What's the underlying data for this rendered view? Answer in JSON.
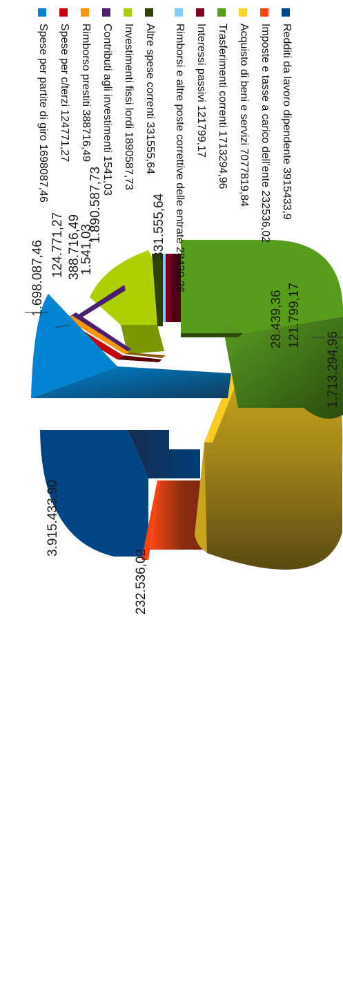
{
  "chart_data": {
    "type": "pie",
    "categories": [
      "Redditi da lavoro dipendente",
      "Imposte e tasse a carico dell'ente",
      "Acquisto di beni e servizi",
      "Trasferimenti correnti",
      "Interessi passivi",
      "Rimborsi e altre poste correttive delle entrate",
      "Altre spese correnti",
      "Investimenti fissi lordi",
      "Contributi agli investimenti",
      "Rimborso prestiti",
      "Spese per c/terzi",
      "Spese per partite di giro"
    ],
    "values": [
      3915433.9,
      232536.02,
      7077819.84,
      1713294.96,
      121799.17,
      28439.36,
      331555.64,
      1890587.73,
      1541.03,
      388716.49,
      124771.27,
      1698087.46
    ],
    "legend_labels": [
      "Redditi da lavoro dipendente 3915433,9",
      "Imposte e tasse a carico dell'ente 232536,02",
      "Acquisto di beni e servizi 7077819,84",
      "Trasferimenti correnti 1713294,96",
      "Interessi passivi 121799,17",
      "Rimborsi e altre poste correttive delle entrate 28439,36",
      "Altre spese correnti 331555,64",
      "Investimenti fissi lordi 1890587,73",
      "Contributi agli investimenti 1541,03",
      "Rimborso prestiti 388716,49",
      "Spese per c/terzi 124771,27",
      "Spese per partite di giro 1698087,46"
    ],
    "data_labels": [
      "3.915.433,90",
      "232.536,02",
      "",
      "1.713.294,96",
      "121.799,17",
      "28.439,36",
      "331.555,64",
      "1.890.587,73",
      "1.541,03",
      "388.716,49",
      "124.771,27",
      "1.698.087,46"
    ],
    "colors": [
      "#004586",
      "#ff420e",
      "#ffd320",
      "#579d1c",
      "#7e0021",
      "#83caff",
      "#314004",
      "#aecf00",
      "#4b1f6f",
      "#ff950e",
      "#c5000b",
      "#0084d1"
    ],
    "legend_position": "right",
    "style": "3d-exploded",
    "orientation": "rotated-90"
  }
}
